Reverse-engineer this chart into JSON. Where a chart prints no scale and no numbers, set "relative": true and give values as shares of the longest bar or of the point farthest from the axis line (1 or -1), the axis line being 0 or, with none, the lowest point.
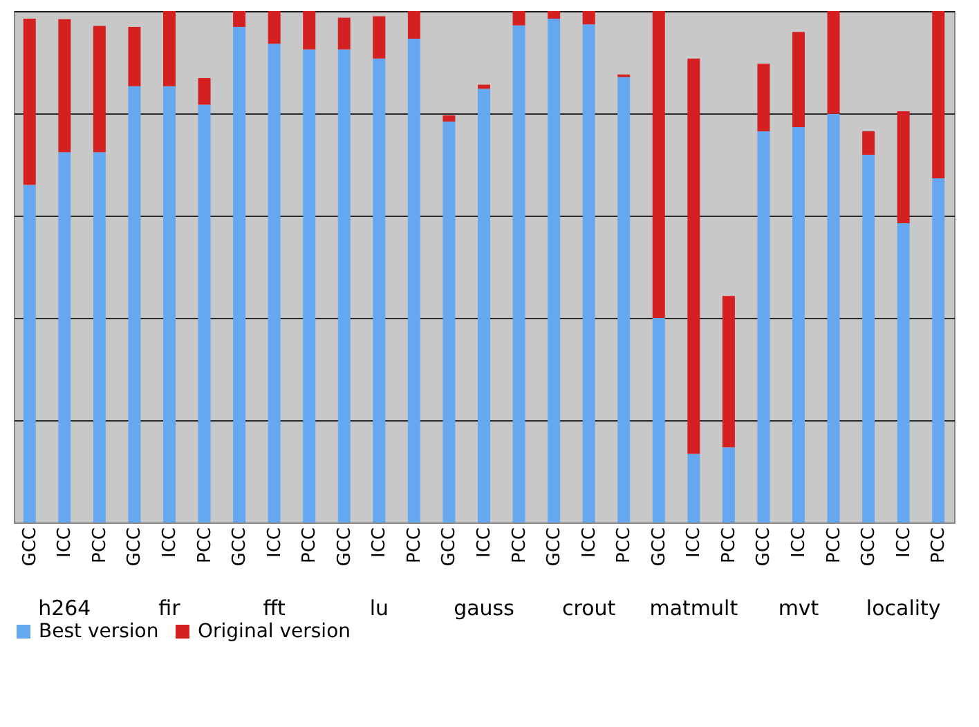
{
  "chart_data": {
    "type": "bar",
    "stacked": true,
    "relative": true,
    "grid": "y",
    "legend": "bottom",
    "categories": [
      "GCC",
      "ICC",
      "PCC",
      "GCC",
      "ICC",
      "PCC",
      "GCC",
      "ICC",
      "PCC",
      "GCC",
      "ICC",
      "PCC",
      "GCC",
      "ICC",
      "PCC",
      "GCC",
      "ICC",
      "PCC",
      "GCC",
      "ICC",
      "PCC",
      "GCC",
      "ICC",
      "PCC",
      "GCC",
      "ICC",
      "PCC"
    ],
    "annotations": [
      "h264",
      "fir",
      "fft",
      "lu",
      "gauss",
      "crout",
      "matmult",
      "mvt",
      "locality"
    ],
    "series": [
      {
        "name": "Best version",
        "color": "#66a8f0",
        "values": [
          0.66,
          0.724,
          0.724,
          0.853,
          0.853,
          0.817,
          0.969,
          0.936,
          0.925,
          0.925,
          0.907,
          0.946,
          0.784,
          0.848,
          0.972,
          0.985,
          0.974,
          0.871,
          0.4,
          0.134,
          0.147,
          0.765,
          0.773,
          0.799,
          0.719,
          0.585,
          0.673
        ]
      },
      {
        "name": "Original version",
        "color": "#d42020",
        "values": [
          0.325,
          0.26,
          0.247,
          0.116,
          0.147,
          0.052,
          0.031,
          0.064,
          0.075,
          0.062,
          0.083,
          0.054,
          0.012,
          0.008,
          0.028,
          0.015,
          0.026,
          0.005,
          0.6,
          0.773,
          0.296,
          0.132,
          0.186,
          0.201,
          0.046,
          0.219,
          0.327
        ]
      }
    ]
  }
}
